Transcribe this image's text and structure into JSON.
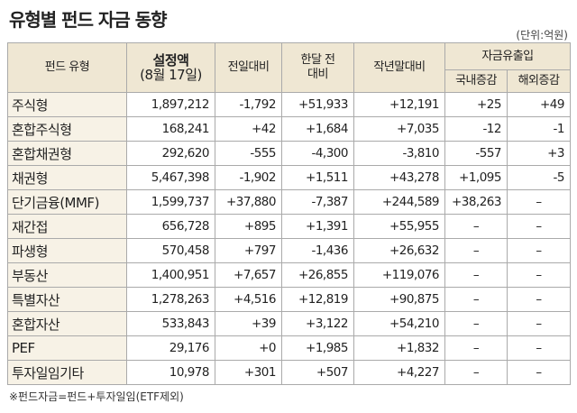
{
  "title": "유형별 펀드 자금 동향",
  "unit": "(단위:억원)",
  "table": {
    "header": {
      "type": "펀드 유형",
      "amount": [
        "설정액",
        "(8월 17일)"
      ],
      "prev_day": "전일대비",
      "month_ago": [
        "한달 전",
        "대비"
      ],
      "year_end": "작년말대비",
      "flow": "자금유출입",
      "domestic": "국내증감",
      "overseas": "해외증감"
    },
    "rows": [
      [
        "주식형",
        "1,897,212",
        "-1,792",
        "+51,933",
        "+12,191",
        "+25",
        "+49"
      ],
      [
        "혼합주식형",
        "168,241",
        "+42",
        "+1,684",
        "+7,035",
        "-12",
        "-1"
      ],
      [
        "혼합채권형",
        "292,620",
        "-555",
        "-4,300",
        "-3,810",
        "-557",
        "+3"
      ],
      [
        "채권형",
        "5,467,398",
        "-1,902",
        "+1,511",
        "+43,278",
        "+1,095",
        "-5"
      ],
      [
        "단기금융(MMF)",
        "1,599,737",
        "+37,880",
        "-7,387",
        "+244,589",
        "+38,263",
        "–"
      ],
      [
        "재간접",
        "656,728",
        "+895",
        "+1,391",
        "+55,955",
        "–",
        "–"
      ],
      [
        "파생형",
        "570,458",
        "+797",
        "-1,436",
        "+26,632",
        "–",
        "–"
      ],
      [
        "부동산",
        "1,400,951",
        "+7,657",
        "+26,855",
        "+119,076",
        "–",
        "–"
      ],
      [
        "특별자산",
        "1,278,263",
        "+4,516",
        "+12,819",
        "+90,875",
        "–",
        "–"
      ],
      [
        "혼합자산",
        "533,843",
        "+39",
        "+3,122",
        "+54,210",
        "–",
        "–"
      ],
      [
        "PEF",
        "29,176",
        "+0",
        "+1,985",
        "+1,832",
        "–",
        "–"
      ],
      [
        "투자일임기타",
        "10,978",
        "+301",
        "+507",
        "+4,227",
        "–",
        "–"
      ]
    ]
  },
  "footnote": "※펀드자금=펀드+투자일임(ETF제외)"
}
